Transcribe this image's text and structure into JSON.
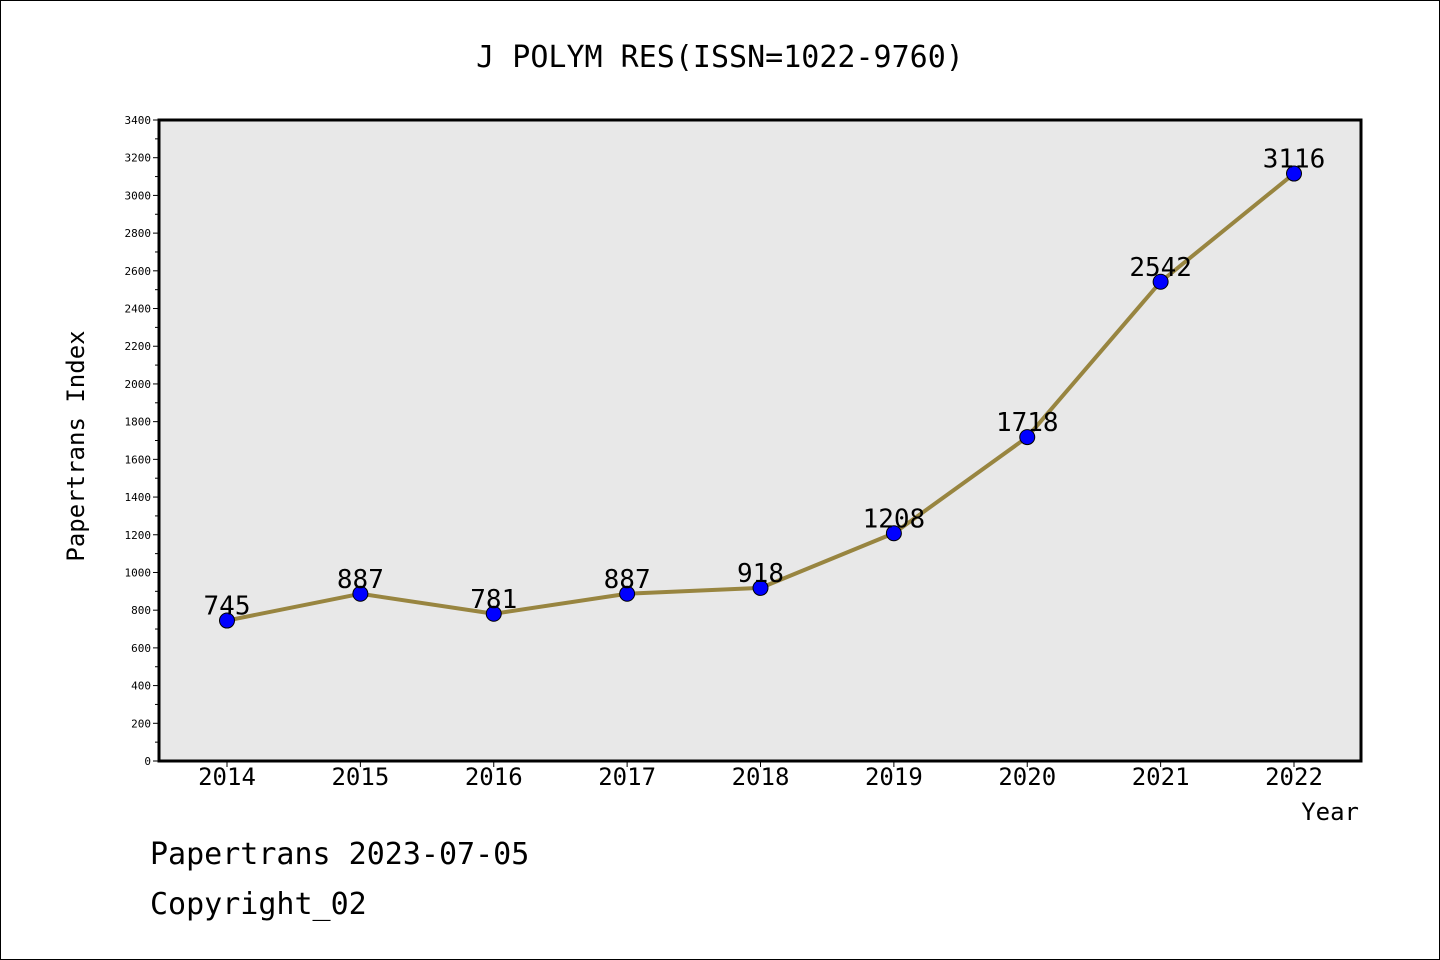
{
  "chart_data": {
    "type": "line",
    "title": "J POLYM RES(ISSN=1022-9760)",
    "xlabel": "Year",
    "ylabel": "Papertrans Index",
    "x": [
      "2014",
      "2015",
      "2016",
      "2017",
      "2018",
      "2019",
      "2020",
      "2021",
      "2022"
    ],
    "series": [
      {
        "values": [
          745,
          887,
          781,
          887,
          918,
          1208,
          1718,
          2542,
          3116
        ],
        "line_color": "#988540",
        "marker_color": "#0000ff"
      }
    ],
    "data_labels": [
      "745",
      "887",
      "781",
      "887",
      "918",
      "1208",
      "1718",
      "2542",
      "3116"
    ],
    "ylim": [
      0,
      3400
    ],
    "yticks": [
      "0",
      "200",
      "400",
      "600",
      "800",
      "1000",
      "1200",
      "1400",
      "1600",
      "1800",
      "2000",
      "2200",
      "2400",
      "2600",
      "2800",
      "3000",
      "3200",
      "3400"
    ],
    "plot_background": "#e8e8e8",
    "grid": false,
    "legend": "none"
  },
  "footer": {
    "line1": "Papertrans 2023-07-05",
    "line2": "Copyright_02"
  }
}
